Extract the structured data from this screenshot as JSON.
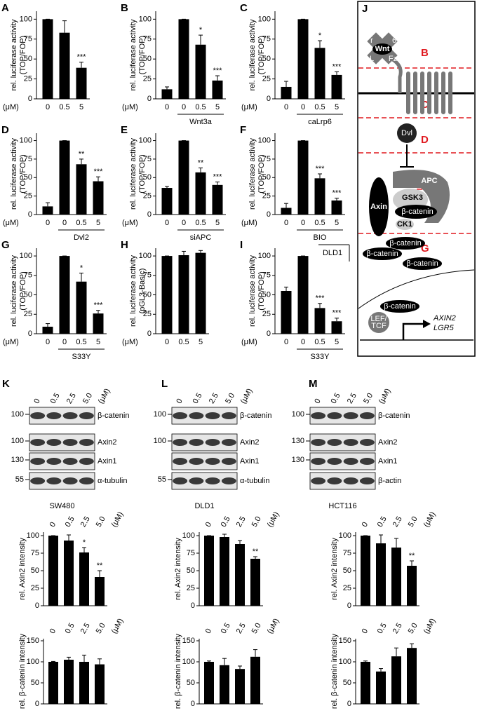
{
  "chart_data": [
    {
      "type": "bar",
      "panel": "A",
      "ylabel": [
        "rel. luciferase activity",
        "(TOP/FOP)"
      ],
      "x_unit": "(μM)",
      "categories": [
        "0",
        "0.5",
        "5"
      ],
      "values": [
        100,
        83,
        39
      ],
      "errors": [
        0,
        15,
        7
      ],
      "annotations": [
        null,
        null,
        "***"
      ],
      "ylim": [
        0,
        110
      ],
      "yticks": [
        0,
        25,
        50,
        75,
        100
      ],
      "color": "#000000"
    },
    {
      "type": "bar",
      "panel": "B",
      "ylabel": [
        "rel. luciferase activity",
        "(TOP/FOP)"
      ],
      "x_unit": "(μM)",
      "categories": [
        "0",
        "0",
        "0.5",
        "5"
      ],
      "values": [
        12,
        100,
        68,
        23
      ],
      "errors": [
        3,
        0,
        12,
        6
      ],
      "annotations": [
        null,
        null,
        "*",
        "***"
      ],
      "group_label": "Wnt3a",
      "ylim": [
        0,
        110
      ],
      "yticks": [
        0,
        25,
        50,
        75,
        100
      ],
      "color": "#000000"
    },
    {
      "type": "bar",
      "panel": "C",
      "ylabel": [
        "rel. luciferase activity",
        "(TOP/FOP)"
      ],
      "x_unit": "(μM)",
      "categories": [
        "0",
        "0",
        "0.5",
        "5"
      ],
      "values": [
        15,
        100,
        64,
        30
      ],
      "errors": [
        7,
        0,
        9,
        4
      ],
      "annotations": [
        null,
        null,
        "*",
        "***"
      ],
      "group_label": "caLrp6",
      "ylim": [
        0,
        110
      ],
      "yticks": [
        0,
        25,
        50,
        75,
        100
      ],
      "color": "#000000"
    },
    {
      "type": "bar",
      "panel": "D",
      "ylabel": [
        "rel. luciferase activity",
        "(TOP/FOP)"
      ],
      "x_unit": "(μM)",
      "categories": [
        "0",
        "0",
        "0.5",
        "5"
      ],
      "values": [
        11,
        100,
        68,
        45
      ],
      "errors": [
        5,
        0,
        7,
        6
      ],
      "annotations": [
        null,
        null,
        "**",
        "***"
      ],
      "group_label": "Dvl2",
      "ylim": [
        0,
        110
      ],
      "yticks": [
        0,
        25,
        50,
        75,
        100
      ],
      "color": "#000000"
    },
    {
      "type": "bar",
      "panel": "E",
      "ylabel": [
        "rel. luciferase activity",
        "(TOP/FOP)"
      ],
      "x_unit": "(μM)",
      "categories": [
        "0",
        "0",
        "0.5",
        "5"
      ],
      "values": [
        36,
        100,
        57,
        40
      ],
      "errors": [
        2,
        0,
        6,
        4
      ],
      "annotations": [
        null,
        null,
        "**",
        "***"
      ],
      "group_label": "siAPC",
      "ylim": [
        0,
        110
      ],
      "yticks": [
        0,
        25,
        50,
        75,
        100
      ],
      "color": "#000000"
    },
    {
      "type": "bar",
      "panel": "F",
      "ylabel": [
        "rel. luciferase activity",
        "(TOP/FOP)"
      ],
      "x_unit": "(μM)",
      "categories": [
        "0",
        "0",
        "0.5",
        "5"
      ],
      "values": [
        9,
        100,
        49,
        19
      ],
      "errors": [
        6,
        0,
        6,
        3
      ],
      "annotations": [
        null,
        null,
        "***",
        "***"
      ],
      "group_label": "BIO",
      "ylim": [
        0,
        110
      ],
      "yticks": [
        0,
        25,
        50,
        75,
        100
      ],
      "color": "#000000"
    },
    {
      "type": "bar",
      "panel": "G",
      "ylabel": [
        "rel. luciferase activity",
        "(TOP/FOP)"
      ],
      "x_unit": "(μM)",
      "categories": [
        "0",
        "0",
        "0.5",
        "5"
      ],
      "values": [
        9,
        100,
        67,
        26
      ],
      "errors": [
        4,
        0,
        11,
        4
      ],
      "annotations": [
        null,
        null,
        "*",
        "***"
      ],
      "group_label": "S33Y",
      "ylim": [
        0,
        110
      ],
      "yticks": [
        0,
        25,
        50,
        75,
        100
      ],
      "color": "#000000"
    },
    {
      "type": "bar",
      "panel": "H",
      "ylabel": [
        "rel. luciferase activity",
        "(pGL3-Basic)"
      ],
      "x_unit": "(μM)",
      "categories": [
        "0",
        "0.5",
        "5"
      ],
      "values": [
        100,
        101,
        104
      ],
      "errors": [
        0,
        5,
        3
      ],
      "annotations": [
        null,
        null,
        null
      ],
      "ylim": [
        0,
        110
      ],
      "yticks": [
        0,
        25,
        50,
        75,
        100
      ],
      "color": "#000000"
    },
    {
      "type": "bar",
      "panel": "I",
      "ylabel": [
        "rel. luciferase activity",
        "(TOP/FOP)"
      ],
      "x_unit": "(μM)",
      "categories": [
        "0",
        "0",
        "0.5",
        "5"
      ],
      "values": [
        55,
        100,
        33,
        16
      ],
      "errors": [
        5,
        0,
        6,
        4
      ],
      "annotations": [
        null,
        null,
        "***",
        "***"
      ],
      "group_label": "S33Y",
      "inset_label": "DLD1",
      "ylim": [
        0,
        110
      ],
      "yticks": [
        0,
        25,
        50,
        75,
        100
      ],
      "color": "#000000"
    },
    {
      "type": "bar",
      "ylabel": [
        "rel. Axin2 intensity"
      ],
      "x_unit": "(μM)",
      "categories": [
        "0",
        "0.5",
        "2.5",
        "5.0"
      ],
      "values": [
        100,
        93,
        76,
        41
      ],
      "errors": [
        0,
        8,
        7,
        9
      ],
      "annotations": [
        null,
        null,
        "*",
        "**"
      ],
      "ylim": [
        0,
        105
      ],
      "yticks": [
        0,
        25,
        50,
        75,
        100
      ],
      "color": "#000000"
    },
    {
      "type": "bar",
      "ylabel": [
        "rel. Axin2 intensity"
      ],
      "x_unit": "(μM)",
      "categories": [
        "0",
        "0.5",
        "2.5",
        "5.0"
      ],
      "values": [
        100,
        98,
        88,
        67
      ],
      "errors": [
        0,
        4,
        5,
        3
      ],
      "annotations": [
        null,
        null,
        null,
        "**"
      ],
      "ylim": [
        0,
        105
      ],
      "yticks": [
        0,
        25,
        50,
        75,
        100
      ],
      "color": "#000000"
    },
    {
      "type": "bar",
      "ylabel": [
        "rel. Axin2 intensity"
      ],
      "x_unit": "(μM)",
      "categories": [
        "0",
        "0.5",
        "2.5",
        "5.0"
      ],
      "values": [
        100,
        89,
        83,
        57
      ],
      "errors": [
        0,
        12,
        13,
        7
      ],
      "annotations": [
        null,
        null,
        null,
        "**"
      ],
      "ylim": [
        0,
        105
      ],
      "yticks": [
        0,
        25,
        50,
        75,
        100
      ],
      "color": "#000000"
    },
    {
      "type": "bar",
      "ylabel": [
        "rel. β-catenin intensity"
      ],
      "x_unit": "(μM)",
      "categories": [
        "0",
        "0.5",
        "2.5",
        "5.0"
      ],
      "values": [
        100,
        105,
        100,
        94
      ],
      "errors": [
        1,
        6,
        16,
        13
      ],
      "annotations": [
        null,
        null,
        null,
        null
      ],
      "ylim": [
        0,
        155
      ],
      "yticks": [
        0,
        50,
        100,
        150
      ],
      "color": "#000000"
    },
    {
      "type": "bar",
      "ylabel": [
        "rel. β-catenin intensity"
      ],
      "x_unit": "(μM)",
      "categories": [
        "0",
        "0.5",
        "2.5",
        "5.0"
      ],
      "values": [
        100,
        92,
        83,
        112
      ],
      "errors": [
        2,
        16,
        7,
        17
      ],
      "annotations": [
        null,
        null,
        null,
        null
      ],
      "ylim": [
        0,
        155
      ],
      "yticks": [
        0,
        50,
        100,
        150
      ],
      "color": "#000000"
    },
    {
      "type": "bar",
      "ylabel": [
        "rel. β-catenin intensity"
      ],
      "x_unit": "(μM)",
      "categories": [
        "0",
        "0.5",
        "2.5",
        "5.0"
      ],
      "values": [
        100,
        77,
        113,
        133
      ],
      "errors": [
        2,
        7,
        20,
        10
      ],
      "annotations": [
        null,
        null,
        null,
        null
      ],
      "ylim": [
        0,
        155
      ],
      "yticks": [
        0,
        50,
        100,
        150
      ],
      "color": "#000000"
    }
  ],
  "blots": [
    {
      "panel": "K",
      "lanes": [
        "0",
        "0.5",
        "2.5",
        "5.0"
      ],
      "unit": "(μM)",
      "rows": [
        {
          "marker": "100",
          "label": "β-catenin"
        },
        {
          "marker": "100",
          "label": "Axin2"
        },
        {
          "marker": "130",
          "label": "Axin1"
        },
        {
          "marker": "55",
          "label": "α-tubulin"
        }
      ],
      "cell_line": "SW480"
    },
    {
      "panel": "L",
      "lanes": [
        "0",
        "0.5",
        "2.5",
        "5.0"
      ],
      "unit": "(μM)",
      "rows": [
        {
          "marker": "100",
          "label": "β-catenin"
        },
        {
          "marker": "100",
          "label": "Axin2"
        },
        {
          "marker": null,
          "label": "Axin1"
        },
        {
          "marker": "55",
          "label": "α-tubulin"
        }
      ],
      "cell_line": "DLD1"
    },
    {
      "panel": "M",
      "lanes": [
        "0",
        "0.5",
        "2.5",
        "5.0"
      ],
      "unit": "(μM)",
      "rows": [
        {
          "marker": "100",
          "label": "β-catenin"
        },
        {
          "marker": "130",
          "label": "Axin2"
        },
        {
          "marker": "130",
          "label": "Axin1"
        },
        {
          "marker": null,
          "label": "β-actin"
        }
      ],
      "cell_line": "HCT116"
    }
  ],
  "diagram": {
    "panel": "J",
    "steps": [
      "B",
      "C",
      "D",
      "E, F",
      "G"
    ],
    "wnt": [
      "Wnt",
      "r",
      "p",
      "6",
      "L",
      "Fz"
    ],
    "dvl": "Dvl",
    "complex": [
      "APC",
      "GSK3",
      "Axin",
      "β-catenin",
      "CK1"
    ],
    "free_catenin": [
      "β-catenin",
      "β-catenin",
      "β-catenin"
    ],
    "nucleus": {
      "catenin": "β-catenin",
      "tf": [
        "LEF/",
        "TCF"
      ],
      "targets": [
        "AXIN2",
        "LGR5"
      ]
    }
  }
}
